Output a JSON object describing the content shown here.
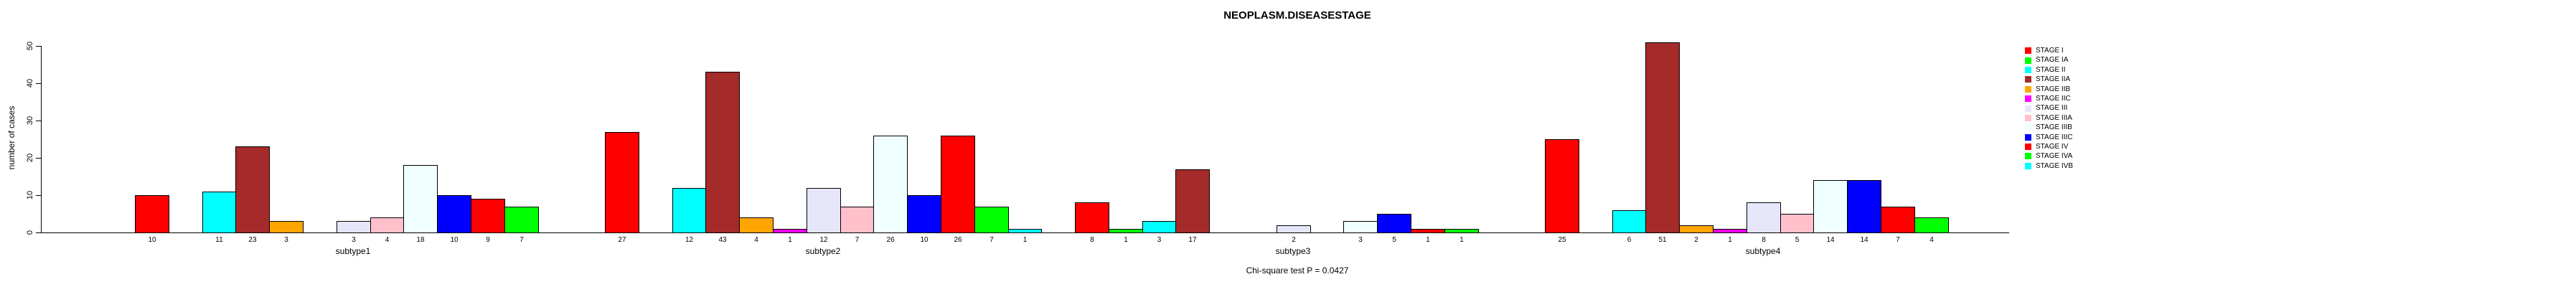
{
  "chart_data": {
    "type": "bar",
    "title": "NEOPLASM.DISEASESTAGE",
    "ylabel": "number of cases",
    "xlabel": "",
    "ylim": [
      0,
      50
    ],
    "yticks": [
      0,
      10,
      20,
      30,
      40,
      50
    ],
    "grid": false,
    "legend_position": "right",
    "bar_value_labels_shown": true,
    "footnote": "Chi-square test P = 0.0427",
    "categories": [
      "subtype1",
      "subtype2",
      "subtype3",
      "subtype4"
    ],
    "series": [
      {
        "name": "STAGE I",
        "color": "#FF0000",
        "values": [
          10,
          27,
          8,
          25
        ]
      },
      {
        "name": "STAGE IA",
        "color": "#00FF00",
        "values": [
          0,
          0,
          1,
          0
        ]
      },
      {
        "name": "STAGE II",
        "color": "#00FFFF",
        "values": [
          11,
          12,
          3,
          6
        ]
      },
      {
        "name": "STAGE IIA",
        "color": "#A52A2A",
        "values": [
          23,
          43,
          17,
          51
        ]
      },
      {
        "name": "STAGE IIB",
        "color": "#FFA500",
        "values": [
          3,
          4,
          0,
          2
        ]
      },
      {
        "name": "STAGE IIC",
        "color": "#FF00FF",
        "values": [
          0,
          1,
          0,
          1
        ]
      },
      {
        "name": "STAGE III",
        "color": "#E6E6FA",
        "values": [
          3,
          12,
          2,
          8
        ]
      },
      {
        "name": "STAGE IIIA",
        "color": "#FFC0CB",
        "values": [
          4,
          7,
          0,
          5
        ]
      },
      {
        "name": "STAGE IIIB",
        "color": "#F0FFFF",
        "values": [
          18,
          26,
          3,
          14
        ]
      },
      {
        "name": "STAGE IIIC",
        "color": "#0000FF",
        "values": [
          10,
          10,
          5,
          14
        ]
      },
      {
        "name": "STAGE IV",
        "color": "#FF0000",
        "values": [
          9,
          26,
          1,
          7
        ]
      },
      {
        "name": "STAGE IVA",
        "color": "#00FF00",
        "values": [
          7,
          7,
          1,
          4
        ]
      },
      {
        "name": "STAGE IVB",
        "color": "#00FFFF",
        "values": [
          0,
          1,
          0,
          0
        ]
      }
    ]
  }
}
